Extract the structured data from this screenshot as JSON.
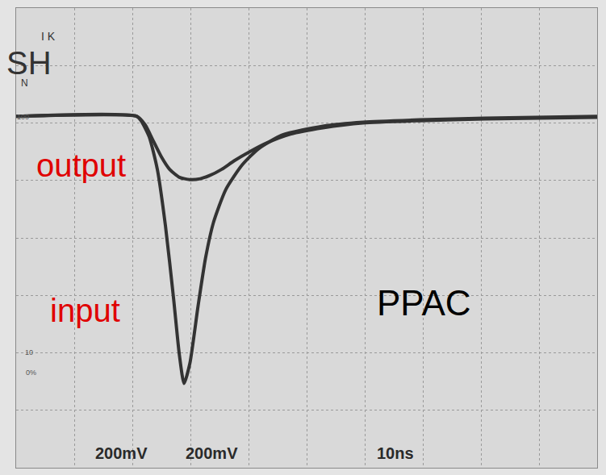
{
  "chart_data": {
    "type": "line",
    "series": [
      {
        "name": "output",
        "color": "#333333",
        "x": [
          0,
          20.8,
          22.2,
          23.6,
          25.0,
          26.4,
          28.1,
          29.9,
          31.7,
          33.3,
          35.4,
          37.5,
          40.3,
          43.1,
          47.2,
          52.8,
          59.7,
          69.4,
          80.6,
          100
        ],
        "values": [
          423,
          423,
          394,
          338,
          282,
          239,
          211,
          203,
          206,
          217,
          239,
          268,
          301,
          330,
          361,
          383,
          400,
          408,
          414,
          420
        ]
      },
      {
        "name": "input",
        "color": "#333333",
        "x": [
          0,
          20.8,
          21.5,
          22.9,
          24.3,
          25.7,
          27.1,
          28.1,
          28.9,
          29.9,
          31.3,
          32.6,
          34.0,
          36.1,
          38.9,
          41.7,
          45.8,
          52.8,
          59.7,
          69.4,
          80.6,
          100
        ],
        "values": [
          423,
          423,
          408,
          352,
          239,
          42,
          -211,
          -408,
          -507,
          -437,
          -239,
          -70,
          56,
          169,
          254,
          310,
          358,
          389,
          403,
          411,
          417,
          423
        ]
      }
    ],
    "xlim": [
      0,
      100
    ],
    "xticks": [
      0,
      10,
      20,
      30,
      40,
      50,
      60,
      70,
      80,
      90,
      100
    ],
    "ylim": [
      -800,
      800
    ],
    "yticks": [
      -800,
      -600,
      -400,
      -200,
      0,
      200,
      400,
      600,
      800
    ],
    "grid": true,
    "tick_labels": false,
    "annotations": [
      "PPAC"
    ],
    "scale_labels": [
      "200mV",
      "200mV",
      "10ns"
    ],
    "graticule_labels": [
      "100",
      "10",
      "0%"
    ],
    "logo_text": [
      "I K",
      "SH",
      "N"
    ]
  }
}
